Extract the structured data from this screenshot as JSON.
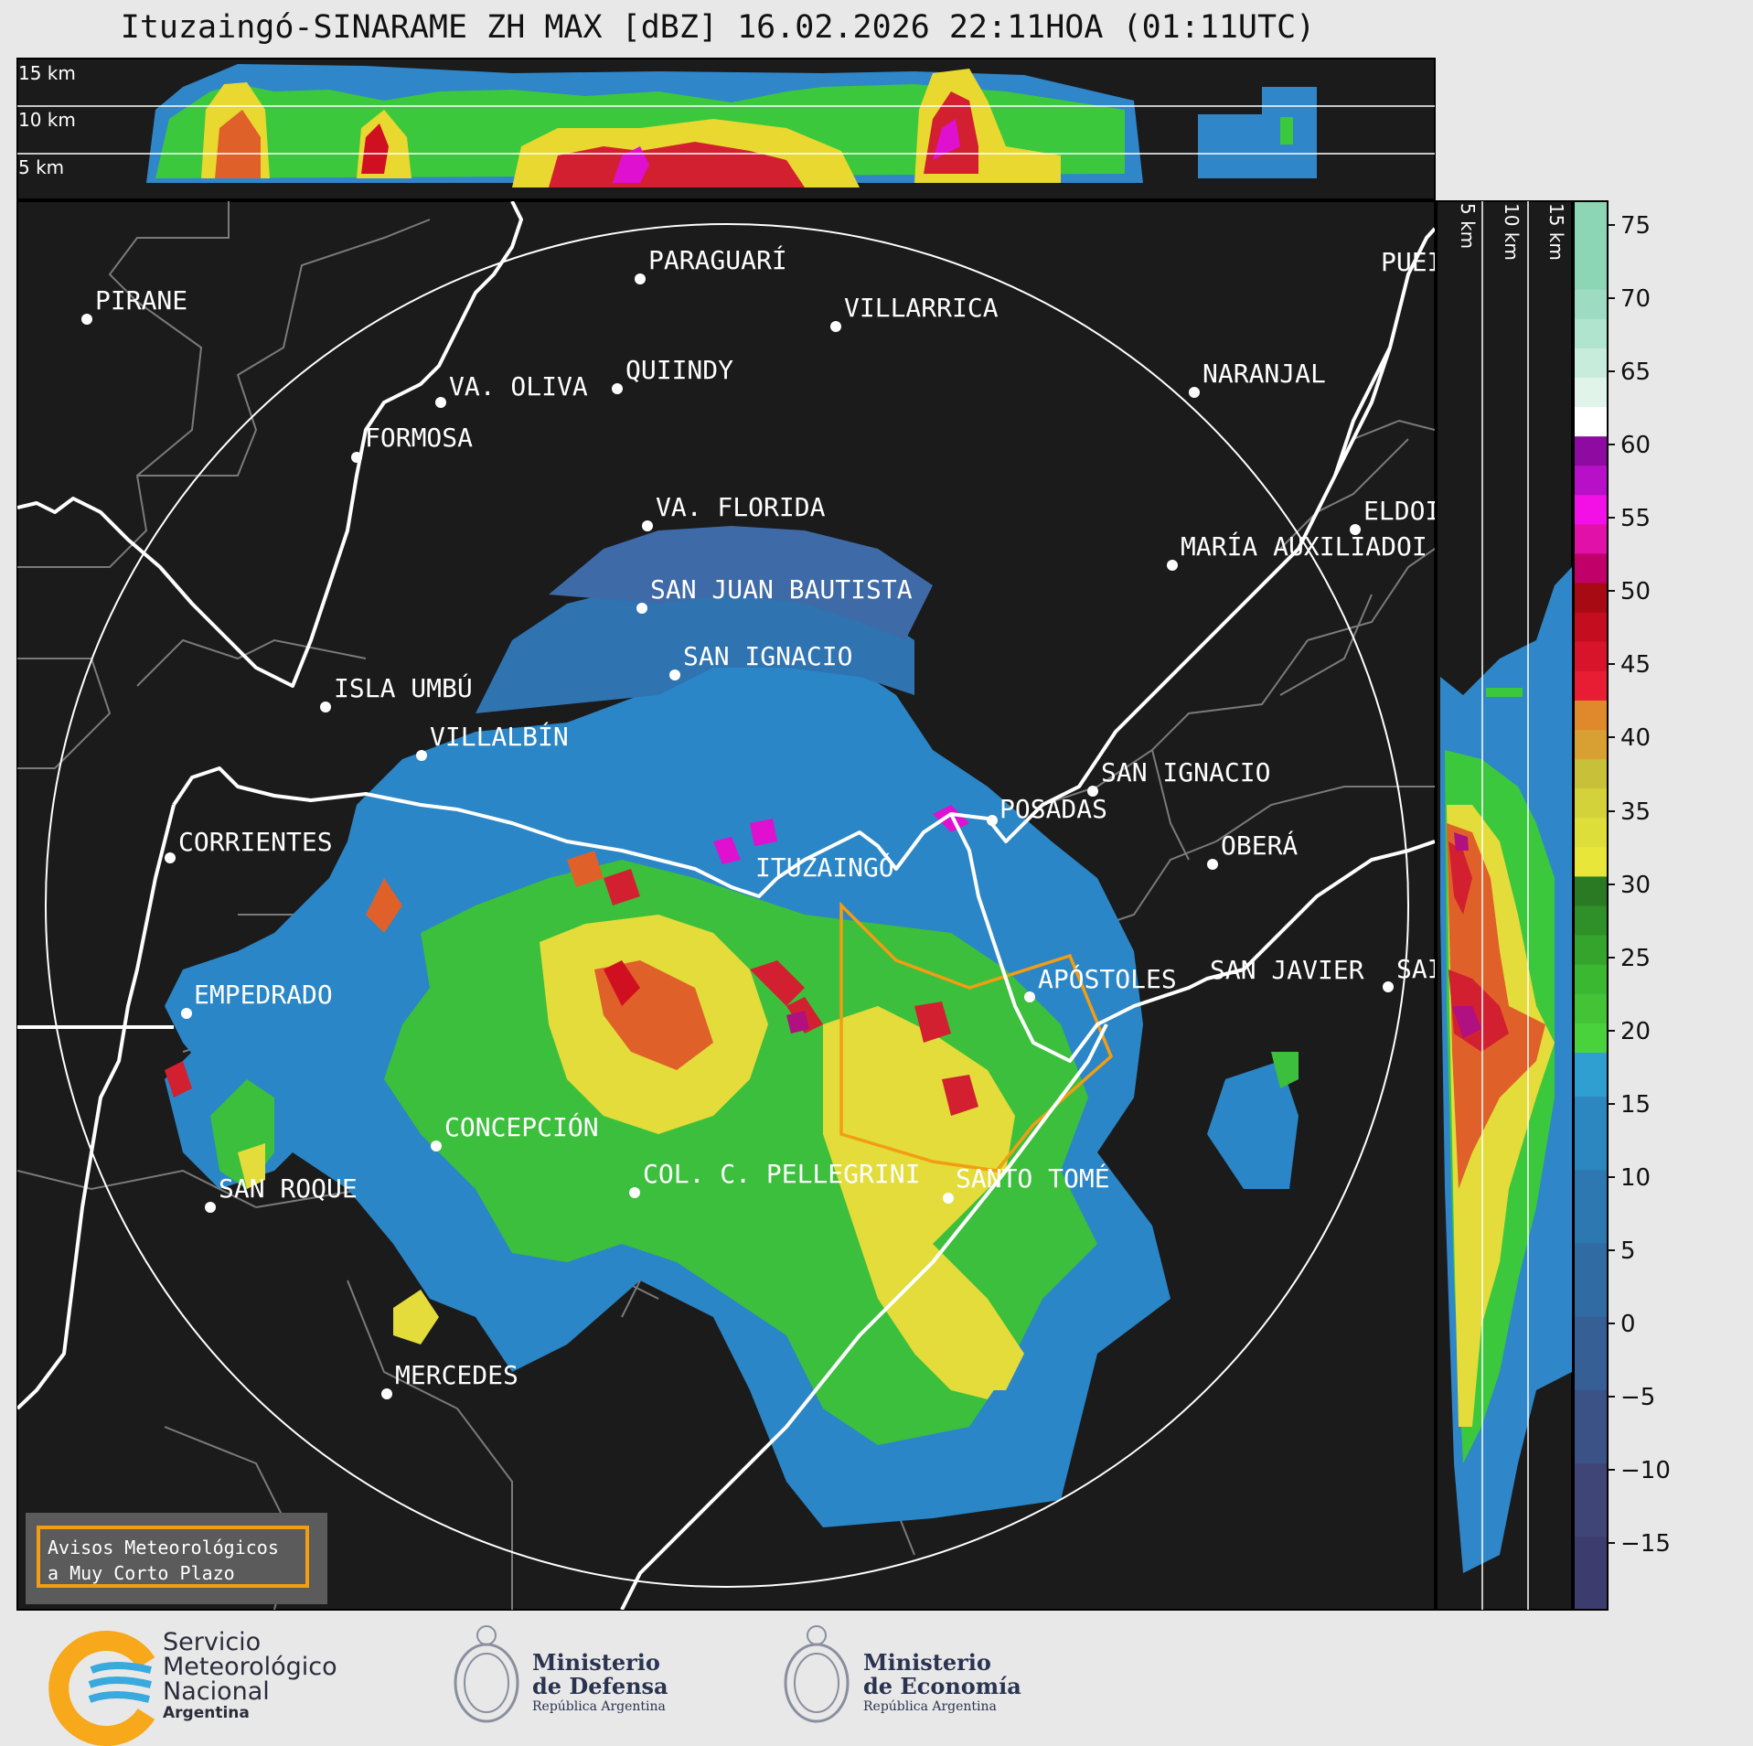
{
  "title": "Ituzaingó-SINARAME ZH MAX [dBZ] 16.02.2026 22:11HOA (01:11UTC)",
  "top_profile": {
    "labels": [
      "15 km",
      "10 km",
      "5 km"
    ]
  },
  "side_profile": {
    "labels": [
      "5 km",
      "10 km",
      "15 km"
    ]
  },
  "colorbar": {
    "ticks": [
      "75",
      "70",
      "65",
      "60",
      "55",
      "50",
      "45",
      "40",
      "35",
      "30",
      "25",
      "20",
      "15",
      "10",
      "5",
      "0",
      "−5",
      "−10",
      "−15"
    ],
    "min": -20,
    "max": 76
  },
  "cities": [
    {
      "name": "PIRANE"
    },
    {
      "name": "PARAGUARÍ"
    },
    {
      "name": "VILLARRICA"
    },
    {
      "name": "QUIINDY"
    },
    {
      "name": "VA. OLIVA"
    },
    {
      "name": "FORMOSA"
    },
    {
      "name": "NARANJAL"
    },
    {
      "name": "PUEI"
    },
    {
      "name": "ELDOI"
    },
    {
      "name": "MARÍA AUXILIADOI"
    },
    {
      "name": "VA. FLORIDA"
    },
    {
      "name": "SAN JUAN BAUTISTA"
    },
    {
      "name": "SAN IGNACIO"
    },
    {
      "name": "ISLA UMBÚ"
    },
    {
      "name": "VILLALBÍN"
    },
    {
      "name": "SAN IGNACIO"
    },
    {
      "name": "POSADAS"
    },
    {
      "name": "OBERÁ"
    },
    {
      "name": "CORRIENTES"
    },
    {
      "name": "ITUZAINGÓ"
    },
    {
      "name": "EMPEDRADO"
    },
    {
      "name": "APÓSTOLES"
    },
    {
      "name": "SAN JAVIER"
    },
    {
      "name": "SAI"
    },
    {
      "name": "CONCEPCIÓN"
    },
    {
      "name": "COL. C. PELLEGRINI"
    },
    {
      "name": "SANTO TOMÉ"
    },
    {
      "name": "SAN ROQUE"
    },
    {
      "name": "MERCEDES"
    }
  ],
  "legend": {
    "line1": "Avisos Meteorológicos",
    "line2": "a Muy Corto Plazo"
  },
  "logos": {
    "smn": {
      "line1": "Servicio",
      "line2": "Meteorológico",
      "line3": "Nacional",
      "line4": "Argentina"
    },
    "defensa": {
      "line1": "Ministerio",
      "line2": "de Defensa",
      "line3": "República Argentina"
    },
    "economia": {
      "line1": "Ministerio",
      "line2": "de Economía",
      "line3": "República Argentina"
    }
  },
  "colors": {
    "warning_outline": "#f29d12",
    "smn_orange": "#f7a81b",
    "smn_blue": "#3aa9de"
  }
}
